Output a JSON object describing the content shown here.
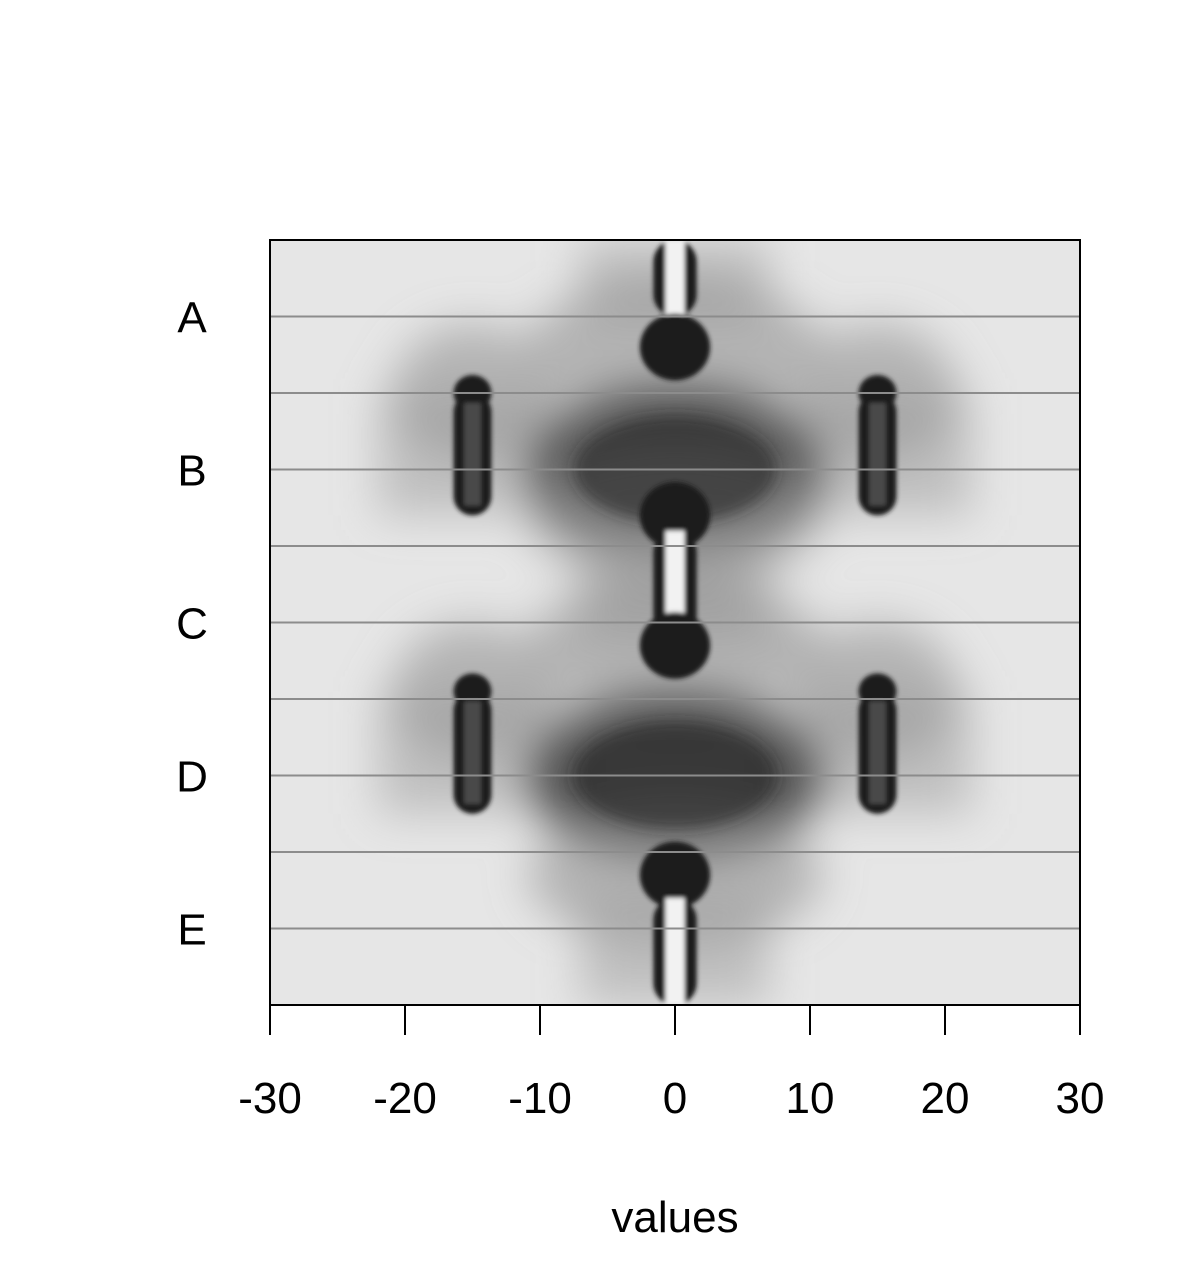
{
  "chart_data": {
    "type": "heatmap",
    "title": "",
    "xlabel": "values",
    "ylabel": "",
    "xlim": [
      -30,
      30
    ],
    "x_ticks": [
      "-30",
      "-20",
      "-10",
      "0",
      "10",
      "20",
      "30"
    ],
    "x_tick_values": [
      -30,
      -20,
      -10,
      0,
      10,
      20,
      30
    ],
    "rows": [
      "A",
      "B",
      "C",
      "D",
      "E"
    ],
    "row_boundaries": [
      0.5,
      1.0,
      1.5,
      2.0,
      2.5,
      3.0,
      3.5,
      4.0,
      4.5
    ],
    "colormap": {
      "low": "#1a1a1a",
      "high": "#e6e6e6"
    },
    "description_of_values": "Grayscale density field; dark = high density. Each row spans one band of the y range.",
    "features": [
      {
        "kind": "bar",
        "x": 0,
        "halfwidth": 1.6,
        "y_from": 0.0,
        "y_to": 0.5
      },
      {
        "kind": "blob",
        "x": 0,
        "y": 0.7,
        "r": 2.6
      },
      {
        "kind": "blob",
        "x": -15,
        "y": 1.0,
        "r": 1.4
      },
      {
        "kind": "blob",
        "x": 15,
        "y": 1.0,
        "r": 1.4
      },
      {
        "kind": "bar",
        "x": -15,
        "halfwidth": 1.4,
        "y_from": 1.0,
        "y_to": 1.8
      },
      {
        "kind": "bar",
        "x": 15,
        "halfwidth": 1.4,
        "y_from": 1.0,
        "y_to": 1.8
      },
      {
        "kind": "blob",
        "x": 0,
        "y": 1.5,
        "r": 4.0
      },
      {
        "kind": "blob",
        "x": 0,
        "y": 1.8,
        "r": 2.6
      },
      {
        "kind": "bar",
        "x": 0,
        "halfwidth": 1.6,
        "y_from": 1.9,
        "y_to": 2.6
      },
      {
        "kind": "blob",
        "x": 0,
        "y": 2.65,
        "r": 2.6
      },
      {
        "kind": "blob",
        "x": -15,
        "y": 2.95,
        "r": 1.4
      },
      {
        "kind": "blob",
        "x": 15,
        "y": 2.95,
        "r": 1.4
      },
      {
        "kind": "bar",
        "x": -15,
        "halfwidth": 1.4,
        "y_from": 2.95,
        "y_to": 3.75
      },
      {
        "kind": "bar",
        "x": 15,
        "halfwidth": 1.4,
        "y_from": 2.95,
        "y_to": 3.75
      },
      {
        "kind": "blob",
        "x": 0,
        "y": 3.5,
        "r": 4.0
      },
      {
        "kind": "blob",
        "x": 0,
        "y": 4.15,
        "r": 2.6
      },
      {
        "kind": "bar",
        "x": 0,
        "halfwidth": 1.6,
        "y_from": 4.3,
        "y_to": 5.0
      }
    ],
    "grid": false,
    "legend": "none"
  }
}
